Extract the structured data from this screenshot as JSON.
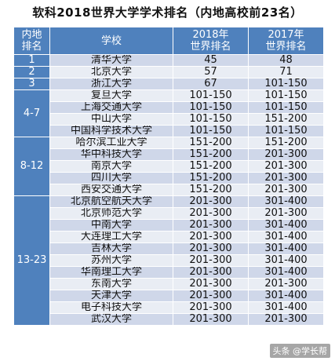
{
  "title": "软科2018世界大学学术排名（内地高校前23名）",
  "headers": {
    "region_rank": [
      "内地",
      "排名"
    ],
    "school": "学校",
    "rank_2018": [
      "2018年",
      "世界排名"
    ],
    "rank_2017": [
      "2017年",
      "世界排名"
    ]
  },
  "groups": [
    {
      "rank": "1",
      "rows": [
        {
          "school": "清华大学",
          "r2018": "45",
          "r2017": "48"
        }
      ]
    },
    {
      "rank": "2",
      "rows": [
        {
          "school": "北京大学",
          "r2018": "57",
          "r2017": "71"
        }
      ]
    },
    {
      "rank": "3",
      "rows": [
        {
          "school": "浙江大学",
          "r2018": "67",
          "r2017": "101-150"
        }
      ]
    },
    {
      "rank": "4-7",
      "rows": [
        {
          "school": "复旦大学",
          "r2018": "101-150",
          "r2017": "101-150"
        },
        {
          "school": "上海交通大学",
          "r2018": "101-150",
          "r2017": "101-150"
        },
        {
          "school": "中山大学",
          "r2018": "101-150",
          "r2017": "151-200"
        },
        {
          "school": "中国科学技术大学",
          "r2018": "101-150",
          "r2017": "101-150"
        }
      ]
    },
    {
      "rank": "8-12",
      "rows": [
        {
          "school": "哈尔滨工业大学",
          "r2018": "151-200",
          "r2017": "151-200"
        },
        {
          "school": "华中科技大学",
          "r2018": "151-200",
          "r2017": "201-300"
        },
        {
          "school": "南京大学",
          "r2018": "151-200",
          "r2017": "201-300"
        },
        {
          "school": "四川大学",
          "r2018": "151-200",
          "r2017": "201-300"
        },
        {
          "school": "西安交通大学",
          "r2018": "151-200",
          "r2017": "201-300"
        }
      ]
    },
    {
      "rank": "13-23",
      "rows": [
        {
          "school": "北京航空航天大学",
          "r2018": "201-300",
          "r2017": "301-400"
        },
        {
          "school": "北京师范大学",
          "r2018": "201-300",
          "r2017": "201-300"
        },
        {
          "school": "中南大学",
          "r2018": "201-300",
          "r2017": "301-400"
        },
        {
          "school": "大连理工大学",
          "r2018": "201-300",
          "r2017": "301-400"
        },
        {
          "school": "吉林大学",
          "r2018": "201-300",
          "r2017": "301-400"
        },
        {
          "school": "苏州大学",
          "r2018": "201-300",
          "r2017": "301-400"
        },
        {
          "school": "华南理工大学",
          "r2018": "201-300",
          "r2017": "301-400"
        },
        {
          "school": "东南大学",
          "r2018": "201-300",
          "r2017": "201-300"
        },
        {
          "school": "天津大学",
          "r2018": "201-300",
          "r2017": "301-400"
        },
        {
          "school": "电子科技大学",
          "r2018": "201-300",
          "r2017": "301-400"
        },
        {
          "school": "武汉大学",
          "r2018": "201-300",
          "r2017": "201-300"
        }
      ]
    }
  ],
  "watermark": "头条 @学长帮"
}
